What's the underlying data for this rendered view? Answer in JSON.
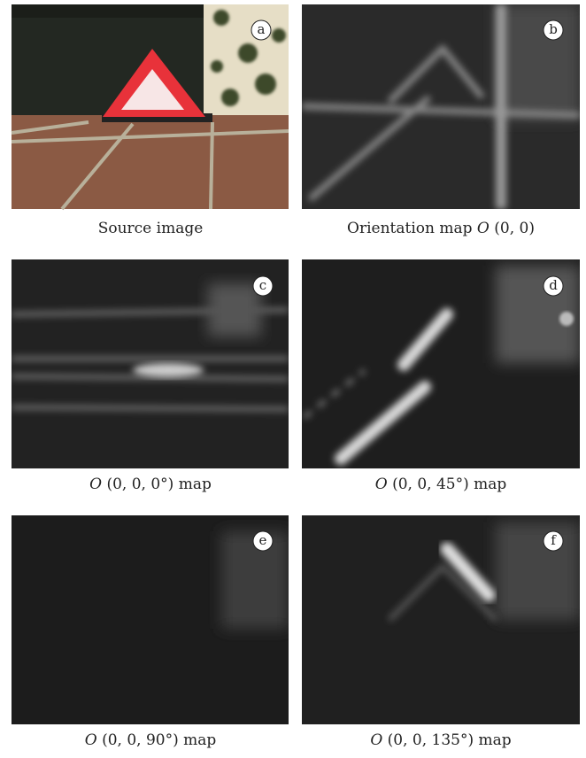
{
  "panels": [
    {
      "label": "a",
      "caption": [
        {
          "text": "Source image",
          "italic": false
        }
      ]
    },
    {
      "label": "b",
      "caption": [
        {
          "text": "Orientation map ",
          "italic": false
        },
        {
          "text": "O",
          "italic": true
        },
        {
          "text": " (0, 0)",
          "italic": false
        }
      ]
    },
    {
      "label": "c",
      "caption": [
        {
          "text": "O",
          "italic": true
        },
        {
          "text": " (0, 0, 0°) map",
          "italic": false
        }
      ]
    },
    {
      "label": "d",
      "caption": [
        {
          "text": "O",
          "italic": true
        },
        {
          "text": " (0, 0, 45°) map",
          "italic": false
        }
      ]
    },
    {
      "label": "e",
      "caption": [
        {
          "text": "O",
          "italic": true
        },
        {
          "text": " (0, 0, 90°) map",
          "italic": false
        }
      ]
    },
    {
      "label": "f",
      "caption": [
        {
          "text": "O",
          "italic": true
        },
        {
          "text": " (0, 0, 135°) map",
          "italic": false
        }
      ]
    }
  ]
}
